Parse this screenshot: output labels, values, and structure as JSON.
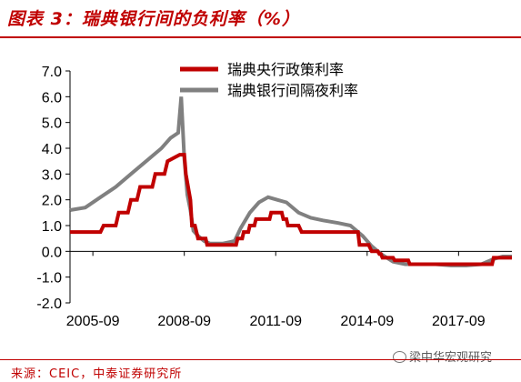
{
  "header": {
    "title": "图表 3：瑞典银行间的负利率（%）"
  },
  "footer": {
    "source": "来源：CEIC，中泰证券研究所",
    "watermark": "梁中华宏观研究"
  },
  "chart_data": {
    "type": "line",
    "title": "图表 3：瑞典银行间的负利率（%）",
    "xlabel": "",
    "ylabel": "",
    "xlim": [
      2005.0,
      2019.5
    ],
    "ylim": [
      -2.0,
      7.0
    ],
    "yticks": [
      7.0,
      6.0,
      5.0,
      4.0,
      3.0,
      2.0,
      1.0,
      0.0,
      -1.0,
      -2.0
    ],
    "ytick_labels": [
      "7.0",
      "6.0",
      "5.0",
      "4.0",
      "3.0",
      "2.0",
      "1.0",
      "0.0",
      "-1.0",
      "-2.0"
    ],
    "xticks": [
      2005.75,
      2008.75,
      2011.75,
      2014.75,
      2017.75
    ],
    "xtick_labels": [
      "2005-09",
      "2008-09",
      "2011-09",
      "2014-09",
      "2017-09"
    ],
    "legend_position": "top-right",
    "grid": false,
    "series": [
      {
        "name": "瑞典央行政策利率",
        "color": "#c00000",
        "x": [
          2005.0,
          2006.0,
          2006.1,
          2006.5,
          2006.6,
          2006.9,
          2007.0,
          2007.2,
          2007.3,
          2007.7,
          2007.8,
          2008.1,
          2008.2,
          2008.6,
          2008.75,
          2008.8,
          2008.95,
          2009.0,
          2009.1,
          2009.2,
          2009.45,
          2009.5,
          2010.45,
          2010.5,
          2010.65,
          2010.7,
          2010.85,
          2010.9,
          2011.05,
          2011.1,
          2011.55,
          2011.6,
          2011.95,
          2012.0,
          2012.1,
          2012.15,
          2012.5,
          2012.6,
          2012.9,
          2013.0,
          2014.45,
          2014.5,
          2014.8,
          2014.9,
          2015.1,
          2015.15,
          2015.2,
          2015.25,
          2015.6,
          2015.65,
          2016.1,
          2016.15,
          2018.85,
          2018.9,
          2019.5
        ],
        "values": [
          0.75,
          0.75,
          1.0,
          1.0,
          1.5,
          1.5,
          2.0,
          2.0,
          2.5,
          2.5,
          3.0,
          3.0,
          3.5,
          3.75,
          3.75,
          3.0,
          2.0,
          1.0,
          1.0,
          0.5,
          0.5,
          0.25,
          0.25,
          0.5,
          0.5,
          0.75,
          0.75,
          1.0,
          1.0,
          1.25,
          1.25,
          1.5,
          1.5,
          1.25,
          1.25,
          1.0,
          1.0,
          0.75,
          0.75,
          0.75,
          0.75,
          0.25,
          0.25,
          0.0,
          0.0,
          -0.1,
          -0.1,
          -0.25,
          -0.25,
          -0.35,
          -0.35,
          -0.5,
          -0.5,
          -0.25,
          -0.25
        ]
      },
      {
        "name": "瑞典银行间隔夜利率",
        "color": "#808080",
        "x": [
          2005.0,
          2005.5,
          2006.0,
          2006.5,
          2007.0,
          2007.5,
          2008.0,
          2008.3,
          2008.55,
          2008.65,
          2008.75,
          2008.85,
          2008.95,
          2009.05,
          2009.2,
          2009.4,
          2009.6,
          2010.0,
          2010.4,
          2010.6,
          2010.9,
          2011.2,
          2011.5,
          2011.8,
          2012.1,
          2012.5,
          2012.9,
          2013.3,
          2013.8,
          2014.2,
          2014.6,
          2014.9,
          2015.2,
          2015.6,
          2016.0,
          2016.5,
          2017.0,
          2017.5,
          2018.0,
          2018.5,
          2018.9,
          2019.2,
          2019.5
        ],
        "values": [
          1.6,
          1.7,
          2.1,
          2.5,
          3.0,
          3.5,
          4.0,
          4.4,
          4.6,
          6.0,
          3.6,
          2.2,
          1.6,
          0.8,
          0.6,
          0.4,
          0.3,
          0.3,
          0.4,
          0.9,
          1.5,
          1.9,
          2.1,
          2.0,
          1.9,
          1.5,
          1.3,
          1.2,
          1.1,
          1.0,
          0.6,
          0.2,
          -0.1,
          -0.4,
          -0.5,
          -0.5,
          -0.5,
          -0.55,
          -0.55,
          -0.5,
          -0.3,
          -0.2,
          -0.2
        ]
      }
    ]
  }
}
